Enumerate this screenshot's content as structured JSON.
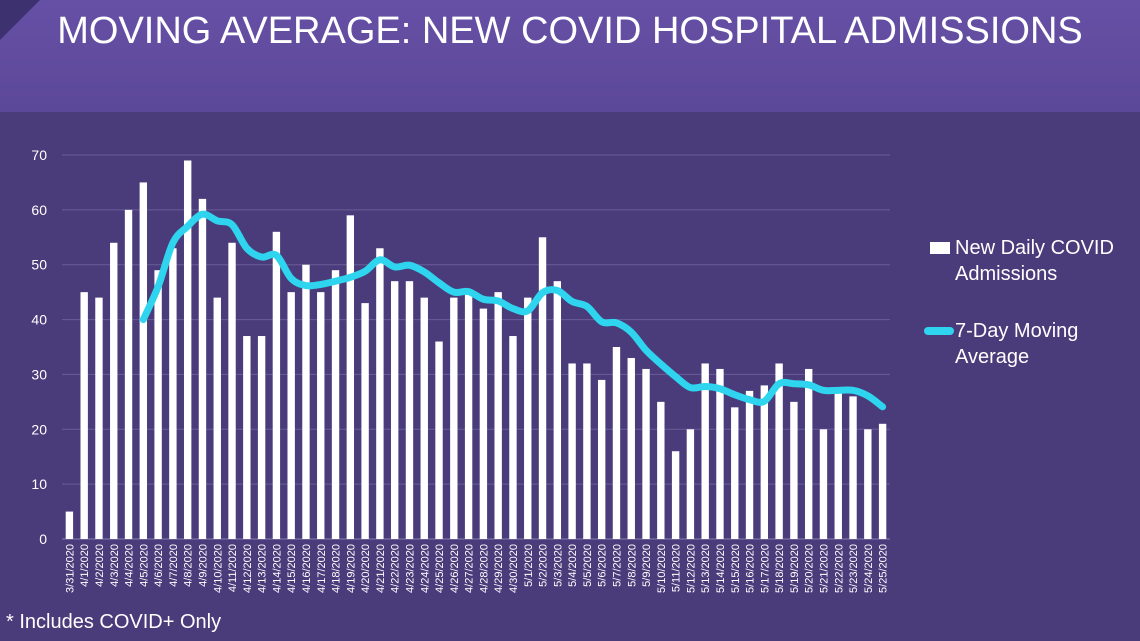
{
  "title": "MOVING AVERAGE: NEW COVID HOSPITAL ADMISSIONS",
  "footnote": "* Includes COVID+ Only",
  "legend": {
    "bars_label_line1": "New Daily COVID",
    "bars_label_line2": "Admissions",
    "line_label_line1": "7-Day Moving",
    "line_label_line2": "Average"
  },
  "colors": {
    "background": "#4a3b7a",
    "header": "#6650a6",
    "bars": "#ffffff",
    "line": "#2fd4ef",
    "gridlines": "#6a5c98"
  },
  "chart_data": {
    "type": "bar",
    "title": "MOVING AVERAGE: NEW COVID HOSPITAL ADMISSIONS",
    "xlabel": "",
    "ylabel": "",
    "ylim": [
      0,
      70
    ],
    "yticks": [
      0,
      10,
      20,
      30,
      40,
      50,
      60,
      70
    ],
    "grid": true,
    "legend_position": "right",
    "categories": [
      "3/31/2020",
      "4/1/2020",
      "4/2/2020",
      "4/3/2020",
      "4/4/2020",
      "4/5/2020",
      "4/6/2020",
      "4/7/2020",
      "4/8/2020",
      "4/9/2020",
      "4/10/2020",
      "4/11/2020",
      "4/12/2020",
      "4/13/2020",
      "4/14/2020",
      "4/15/2020",
      "4/16/2020",
      "4/17/2020",
      "4/18/2020",
      "4/19/2020",
      "4/20/2020",
      "4/21/2020",
      "4/22/2020",
      "4/23/2020",
      "4/24/2020",
      "4/25/2020",
      "4/26/2020",
      "4/27/2020",
      "4/28/2020",
      "4/29/2020",
      "4/30/2020",
      "5/1/2020",
      "5/2/2020",
      "5/3/2020",
      "5/4/2020",
      "5/5/2020",
      "5/6/2020",
      "5/7/2020",
      "5/8/2020",
      "5/9/2020",
      "5/10/2020",
      "5/11/2020",
      "5/12/2020",
      "5/13/2020",
      "5/14/2020",
      "5/15/2020",
      "5/16/2020",
      "5/17/2020",
      "5/18/2020",
      "5/19/2020",
      "5/20/2020",
      "5/21/2020",
      "5/22/2020",
      "5/23/2020",
      "5/24/2020",
      "5/25/2020"
    ],
    "series": [
      {
        "name": "New Daily COVID Admissions",
        "type": "bar",
        "values": [
          5,
          45,
          44,
          54,
          60,
          65,
          49,
          53,
          69,
          62,
          44,
          54,
          37,
          37,
          56,
          45,
          50,
          45,
          49,
          59,
          43,
          53,
          47,
          47,
          44,
          36,
          44,
          45,
          42,
          45,
          37,
          44,
          55,
          47,
          32,
          32,
          29,
          35,
          33,
          31,
          25,
          16,
          20,
          32,
          31,
          24,
          27,
          28,
          32,
          25,
          31,
          20,
          27,
          26,
          20,
          21
        ]
      },
      {
        "name": "7-Day Moving Average",
        "type": "line",
        "values": [
          null,
          null,
          null,
          null,
          null,
          40,
          46,
          54,
          57,
          59.2,
          58,
          57.3,
          53,
          51.4,
          51.7,
          47.5,
          46.2,
          46.4,
          47,
          47.7,
          48.8,
          50.9,
          49.6,
          49.9,
          48.7,
          46.7,
          45,
          45.1,
          43.7,
          43.4,
          42,
          41.6,
          44.9,
          45.3,
          43.3,
          42.4,
          39.6,
          39.4,
          37.7,
          34.4,
          31.9,
          29.6,
          27.6,
          27.8,
          27.4,
          26.3,
          25.4,
          25.1,
          28.3,
          28.3,
          28.1,
          27.1,
          27.1,
          27.1,
          26.1,
          24.1
        ]
      }
    ]
  }
}
